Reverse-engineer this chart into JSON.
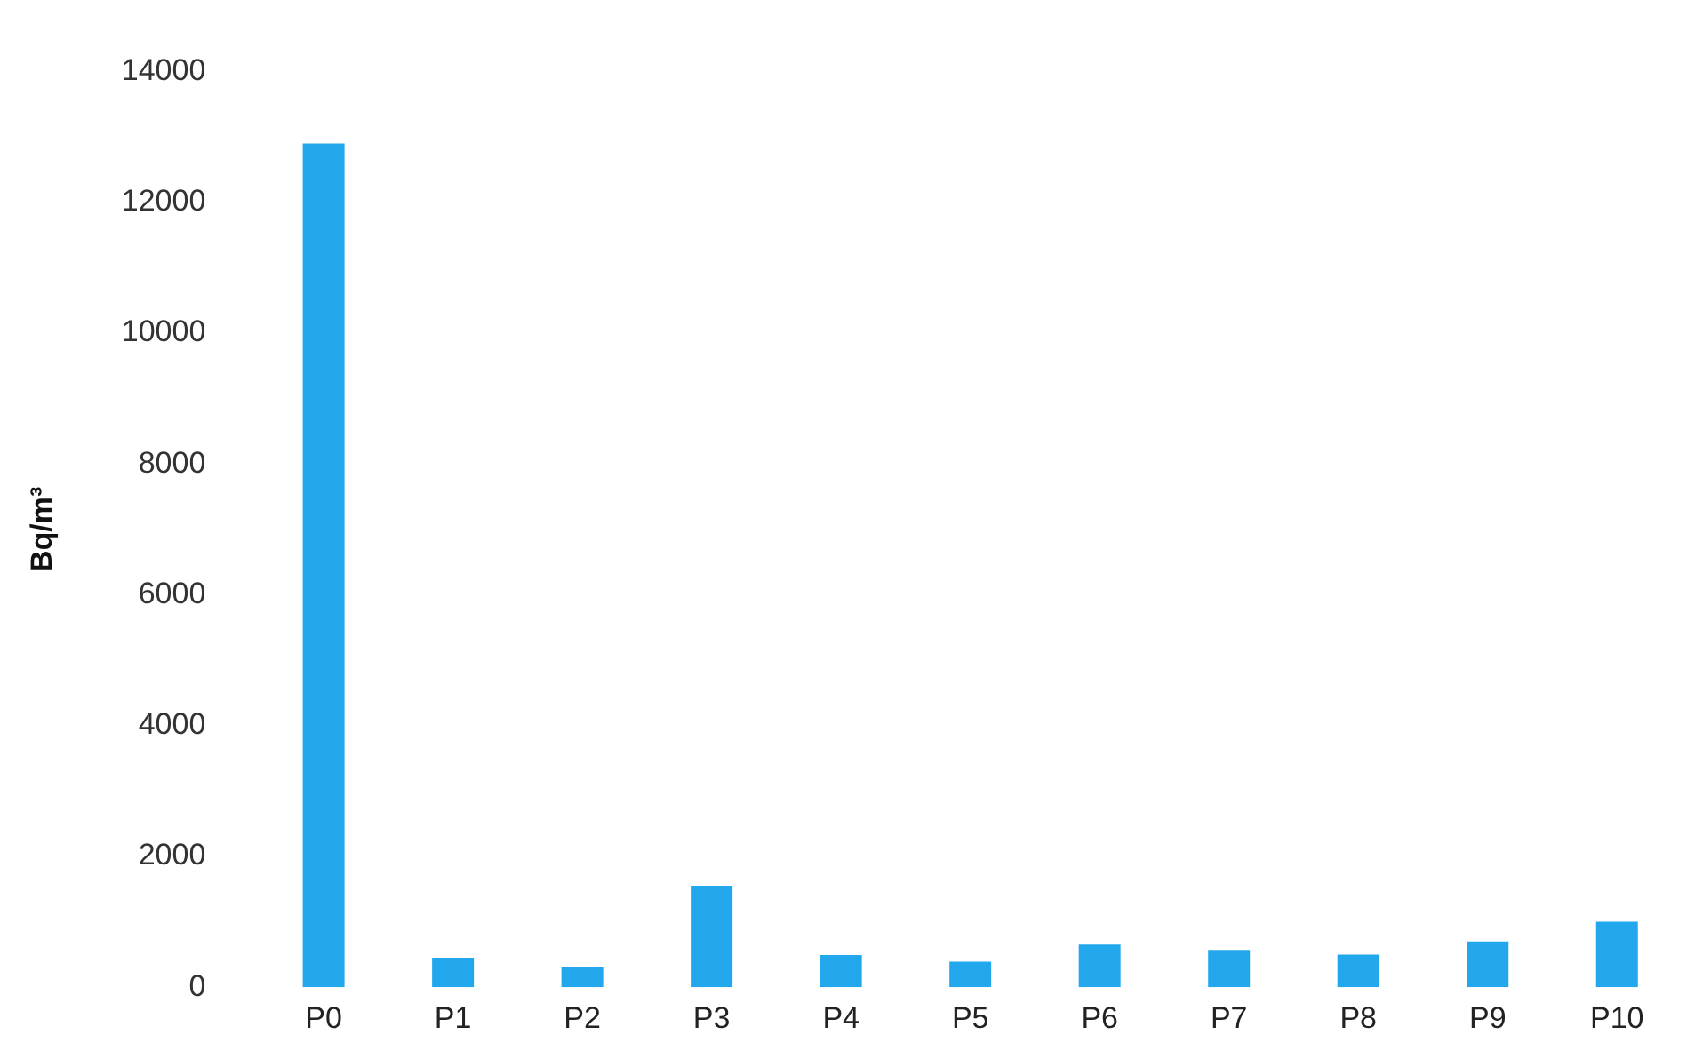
{
  "chart_data": {
    "type": "bar",
    "ylabel": "Bq/m³",
    "categories": [
      "P0",
      "P1",
      "P2",
      "P3",
      "P4",
      "P5",
      "P6",
      "P7",
      "P8",
      "P9",
      "P10"
    ],
    "values": [
      12900,
      450,
      300,
      1550,
      490,
      390,
      650,
      570,
      500,
      700,
      1000
    ],
    "color": "#22a7ec",
    "ylim": [
      0,
      14000
    ],
    "yticks": [
      0,
      2000,
      4000,
      6000,
      8000,
      10000,
      12000,
      14000
    ],
    "grid": false,
    "legend": false
  }
}
